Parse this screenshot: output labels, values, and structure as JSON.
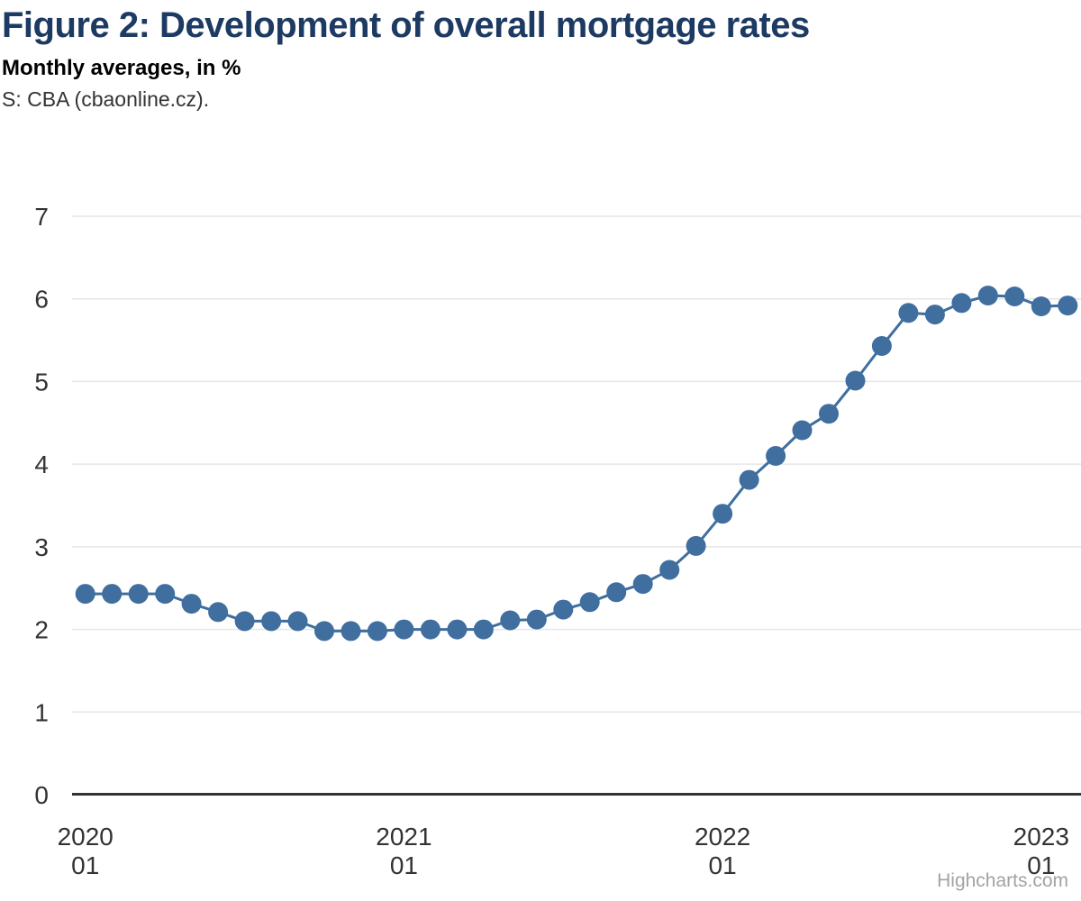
{
  "header": {
    "title": "Figure 2: Development of overall mortgage rates",
    "subtitle": "Monthly averages, in %",
    "source": "S: CBA (cbaonline.cz)."
  },
  "credits": {
    "label": "Highcharts.com"
  },
  "colors": {
    "title": "#1d3a63",
    "series": "#3f6e9f",
    "gridline": "#e6e6e6",
    "axis_line": "#333333",
    "tick_label": "#333333",
    "credits": "#a3a3a3",
    "background": "#ffffff"
  },
  "chart_data": {
    "type": "line",
    "title": "Figure 2: Development of overall mortgage rates",
    "subtitle": "Monthly averages, in %",
    "source": "S: CBA (cbaonline.cz).",
    "legend": false,
    "grid": true,
    "marker_radius": 11,
    "line_width": 3,
    "ylim": [
      0,
      7
    ],
    "yticks": [
      0,
      1,
      2,
      3,
      4,
      5,
      6,
      7
    ],
    "x": [
      "2020-01",
      "2020-02",
      "2020-03",
      "2020-04",
      "2020-05",
      "2020-06",
      "2020-07",
      "2020-08",
      "2020-09",
      "2020-10",
      "2020-11",
      "2020-12",
      "2021-01",
      "2021-02",
      "2021-03",
      "2021-04",
      "2021-05",
      "2021-06",
      "2021-07",
      "2021-08",
      "2021-09",
      "2021-10",
      "2021-11",
      "2021-12",
      "2022-01",
      "2022-02",
      "2022-03",
      "2022-04",
      "2022-05",
      "2022-06",
      "2022-07",
      "2022-08",
      "2022-09",
      "2022-10",
      "2022-11",
      "2022-12",
      "2023-01",
      "2023-02"
    ],
    "values": [
      2.43,
      2.43,
      2.43,
      2.43,
      2.31,
      2.21,
      2.1,
      2.1,
      2.1,
      1.98,
      1.98,
      1.98,
      2.0,
      2.0,
      2.0,
      2.0,
      2.11,
      2.12,
      2.24,
      2.33,
      2.45,
      2.55,
      2.72,
      3.01,
      3.4,
      3.81,
      4.1,
      4.41,
      4.61,
      5.01,
      5.43,
      5.83,
      5.81,
      5.95,
      6.04,
      6.03,
      5.91,
      5.92
    ],
    "xticks": [
      {
        "index": 0,
        "year": "2020",
        "month": "01"
      },
      {
        "index": 12,
        "year": "2021",
        "month": "01"
      },
      {
        "index": 24,
        "year": "2022",
        "month": "01"
      },
      {
        "index": 36,
        "year": "2023",
        "month": "01"
      }
    ]
  }
}
